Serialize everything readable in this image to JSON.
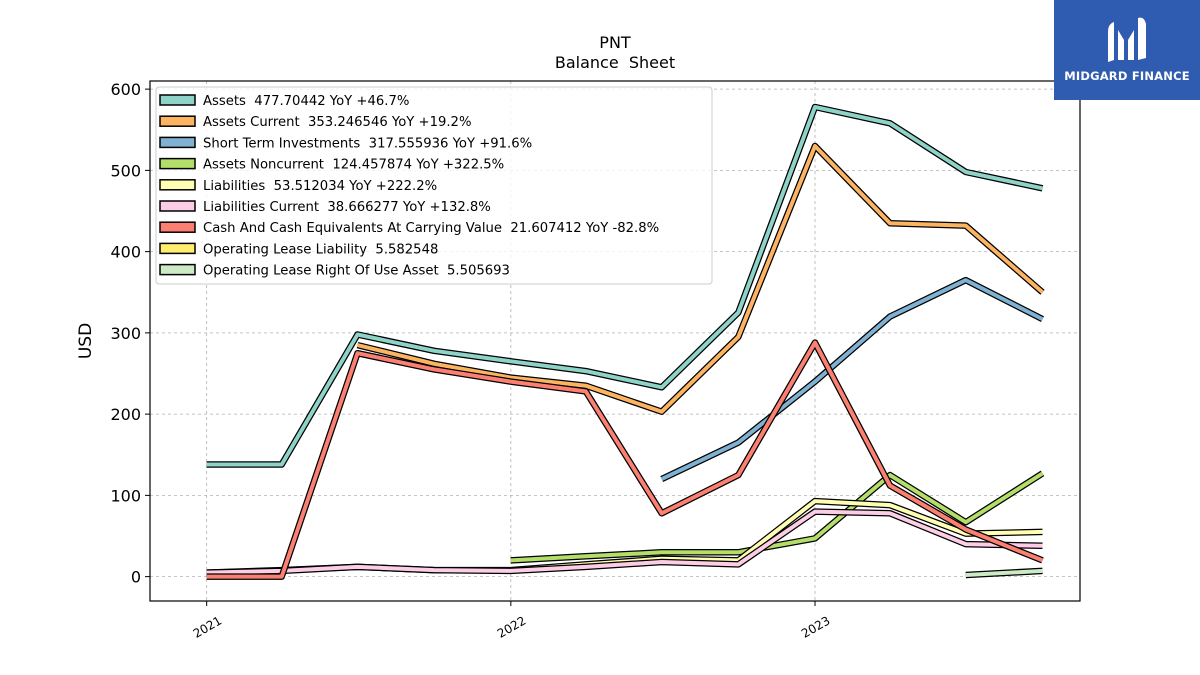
{
  "logo": {
    "text": "MIDGARD FINANCE",
    "mark_icon": "midgard-m-logo-icon",
    "background": "#2f5cb0"
  },
  "chart_data": {
    "type": "line",
    "title": "PNT",
    "subtitle": "Balance  Sheet",
    "xlabel": "",
    "ylabel": "USD",
    "x_ticks": [
      "2021",
      "2022",
      "2023"
    ],
    "y_ticks": [
      0,
      100,
      200,
      300,
      400,
      500,
      600
    ],
    "ylim": [
      -30,
      610
    ],
    "xlim": [
      "2020-10-25",
      "2023-11-15"
    ],
    "grid": true,
    "legend_position": "top-left",
    "x": [
      "2021-01-01",
      "2021-04-01",
      "2021-07-01",
      "2021-10-01",
      "2022-01-01",
      "2022-04-01",
      "2022-07-01",
      "2022-10-01",
      "2023-01-01",
      "2023-04-01",
      "2023-07-01",
      "2023-10-01"
    ],
    "series": [
      {
        "name": "Assets  477.70442 YoY +46.7%",
        "color": "#8dd3c7",
        "values": [
          138,
          138,
          298,
          278,
          265,
          253,
          233,
          325,
          578,
          558,
          498,
          478
        ]
      },
      {
        "name": "Assets Current  353.246546 YoY +19.2%",
        "color": "#fdb462",
        "values": [
          null,
          null,
          285,
          262,
          245,
          235,
          203,
          295,
          530,
          435,
          432,
          350
        ]
      },
      {
        "name": "Short Term Investments  317.555936 YoY +91.6%",
        "color": "#80b1d3",
        "values": [
          null,
          null,
          null,
          null,
          null,
          null,
          120,
          165,
          240,
          320,
          365,
          317
        ]
      },
      {
        "name": "Assets Noncurrent  124.457874 YoY +322.5%",
        "color": "#b3de69",
        "values": [
          null,
          null,
          null,
          null,
          20,
          25,
          30,
          30,
          47,
          125,
          67,
          127
        ]
      },
      {
        "name": "Liabilities  53.512034 YoY +222.2%",
        "color": "#ffffb3",
        "values": [
          5,
          8,
          12,
          8,
          8,
          15,
          22,
          20,
          93,
          88,
          53,
          55
        ]
      },
      {
        "name": "Liabilities Current  38.666277 YoY +132.8%",
        "color": "#fccde5",
        "values": [
          5,
          7,
          12,
          8,
          7,
          12,
          18,
          15,
          80,
          78,
          40,
          38
        ]
      },
      {
        "name": "Cash And Cash Equivalents At Carrying Value  21.607412 YoY -82.8%",
        "color": "#fb8072",
        "values": [
          0,
          0,
          275,
          255,
          240,
          228,
          78,
          125,
          288,
          112,
          58,
          20
        ]
      },
      {
        "name": "Operating Lease Liability  5.582548",
        "color": "#ffed6f",
        "values": [
          null,
          null,
          null,
          null,
          null,
          null,
          null,
          null,
          null,
          null,
          null,
          null
        ]
      },
      {
        "name": "Operating Lease Right Of Use Asset  5.505693",
        "color": "#ccebc5",
        "values": [
          null,
          null,
          null,
          null,
          null,
          null,
          null,
          null,
          null,
          null,
          2,
          7
        ]
      }
    ]
  }
}
